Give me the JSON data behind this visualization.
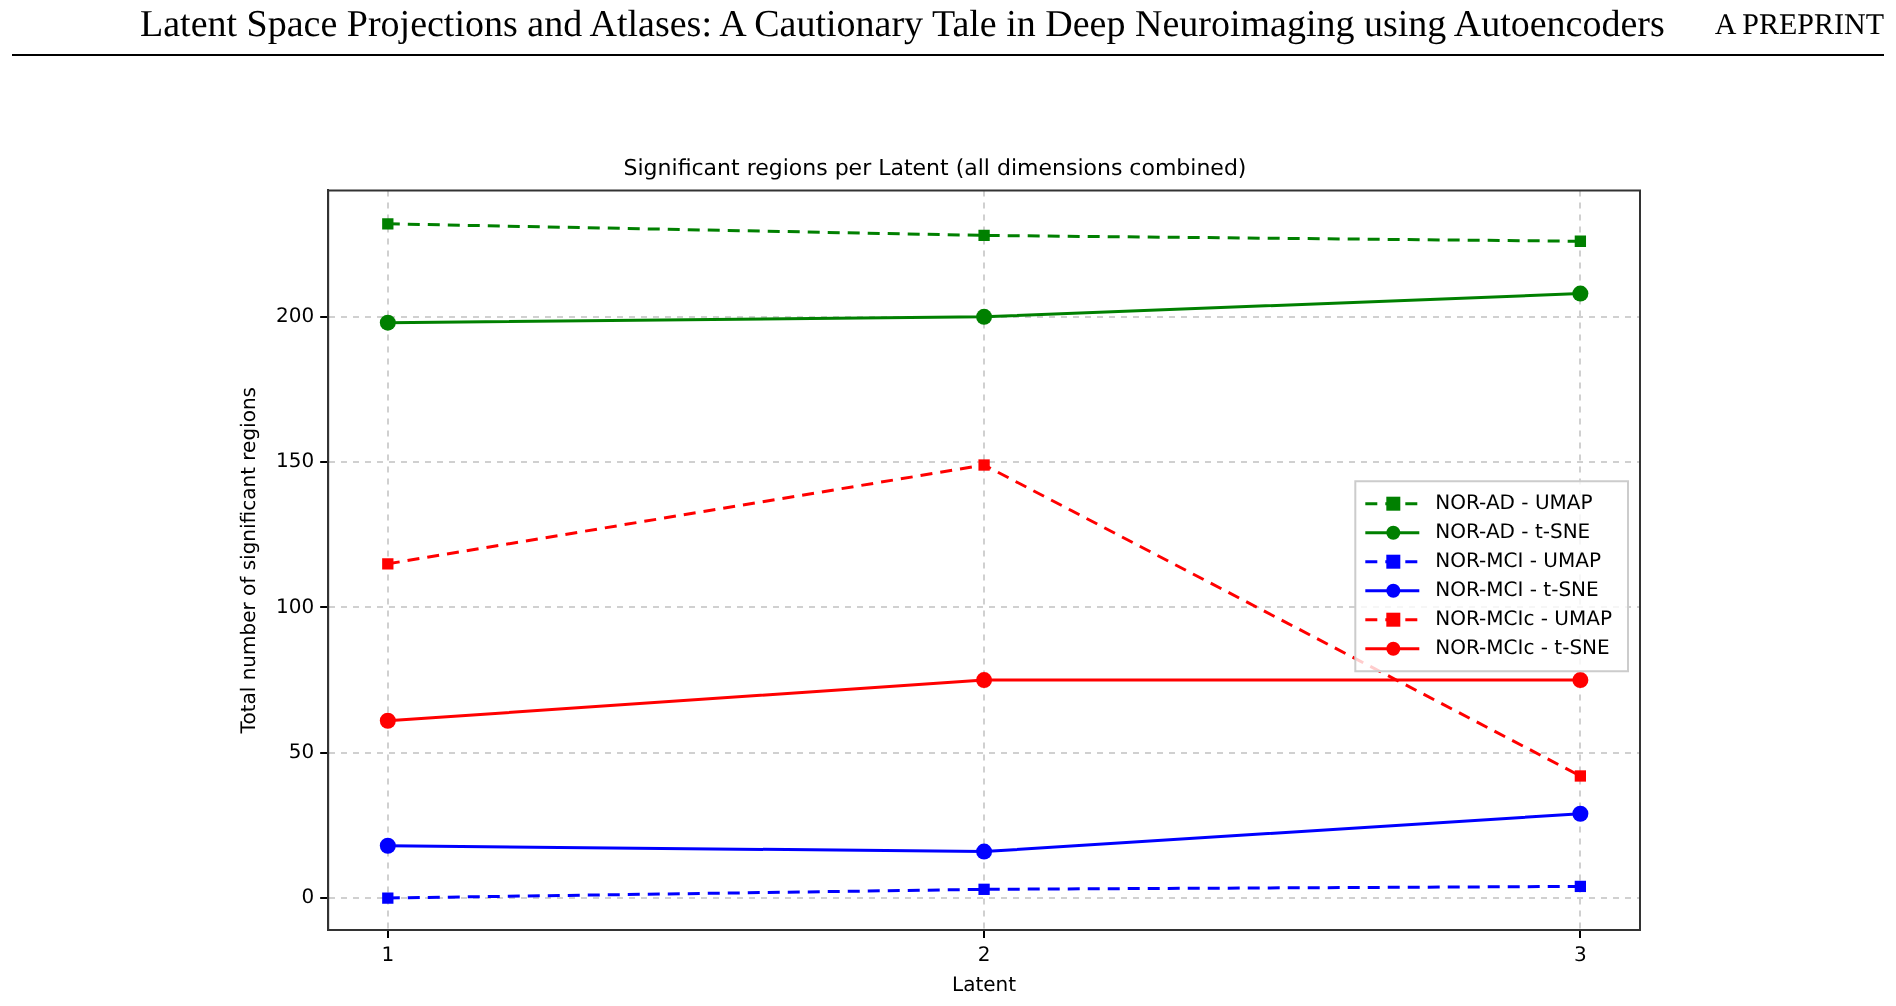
{
  "chart_data": {
    "type": "line",
    "title": "Significant regions per Latent (all dimensions combined)",
    "xlabel": "Latent",
    "ylabel": "Total number of significant regions",
    "annotations": [
      "Latent Space Projections and Atlases: A Cautionary Tale in Deep Neuroimaging using Autoencoders",
      "A PREPRINT"
    ],
    "x": [
      1,
      2,
      3
    ],
    "xlim": [
      0.9,
      3.1
    ],
    "xticks": [
      1,
      2,
      3
    ],
    "ylim": [
      -11,
      243.5
    ],
    "yticks": [
      0,
      50,
      100,
      150,
      200
    ],
    "grid": true,
    "legend": "right",
    "series": [
      {
        "name": "NOR-AD - UMAP",
        "color": "#008000",
        "marker": "square",
        "line_style": "dashed",
        "values": [
          232,
          228,
          226
        ]
      },
      {
        "name": "NOR-AD - t-SNE",
        "color": "#008000",
        "marker": "circle",
        "line_style": "solid",
        "values": [
          198,
          200,
          208
        ]
      },
      {
        "name": "NOR-MCI - UMAP",
        "color": "#0000ff",
        "marker": "square",
        "line_style": "dashed",
        "values": [
          0,
          3,
          4
        ]
      },
      {
        "name": "NOR-MCI - t-SNE",
        "color": "#0000ff",
        "marker": "circle",
        "line_style": "solid",
        "values": [
          18,
          16,
          29
        ]
      },
      {
        "name": "NOR-MCIc - UMAP",
        "color": "#ff0000",
        "marker": "square",
        "line_style": "dashed",
        "values": [
          115,
          149,
          42
        ]
      },
      {
        "name": "NOR-MCIc - t-SNE",
        "color": "#ff0000",
        "marker": "circle",
        "line_style": "solid",
        "values": [
          61,
          75,
          75
        ]
      }
    ]
  }
}
